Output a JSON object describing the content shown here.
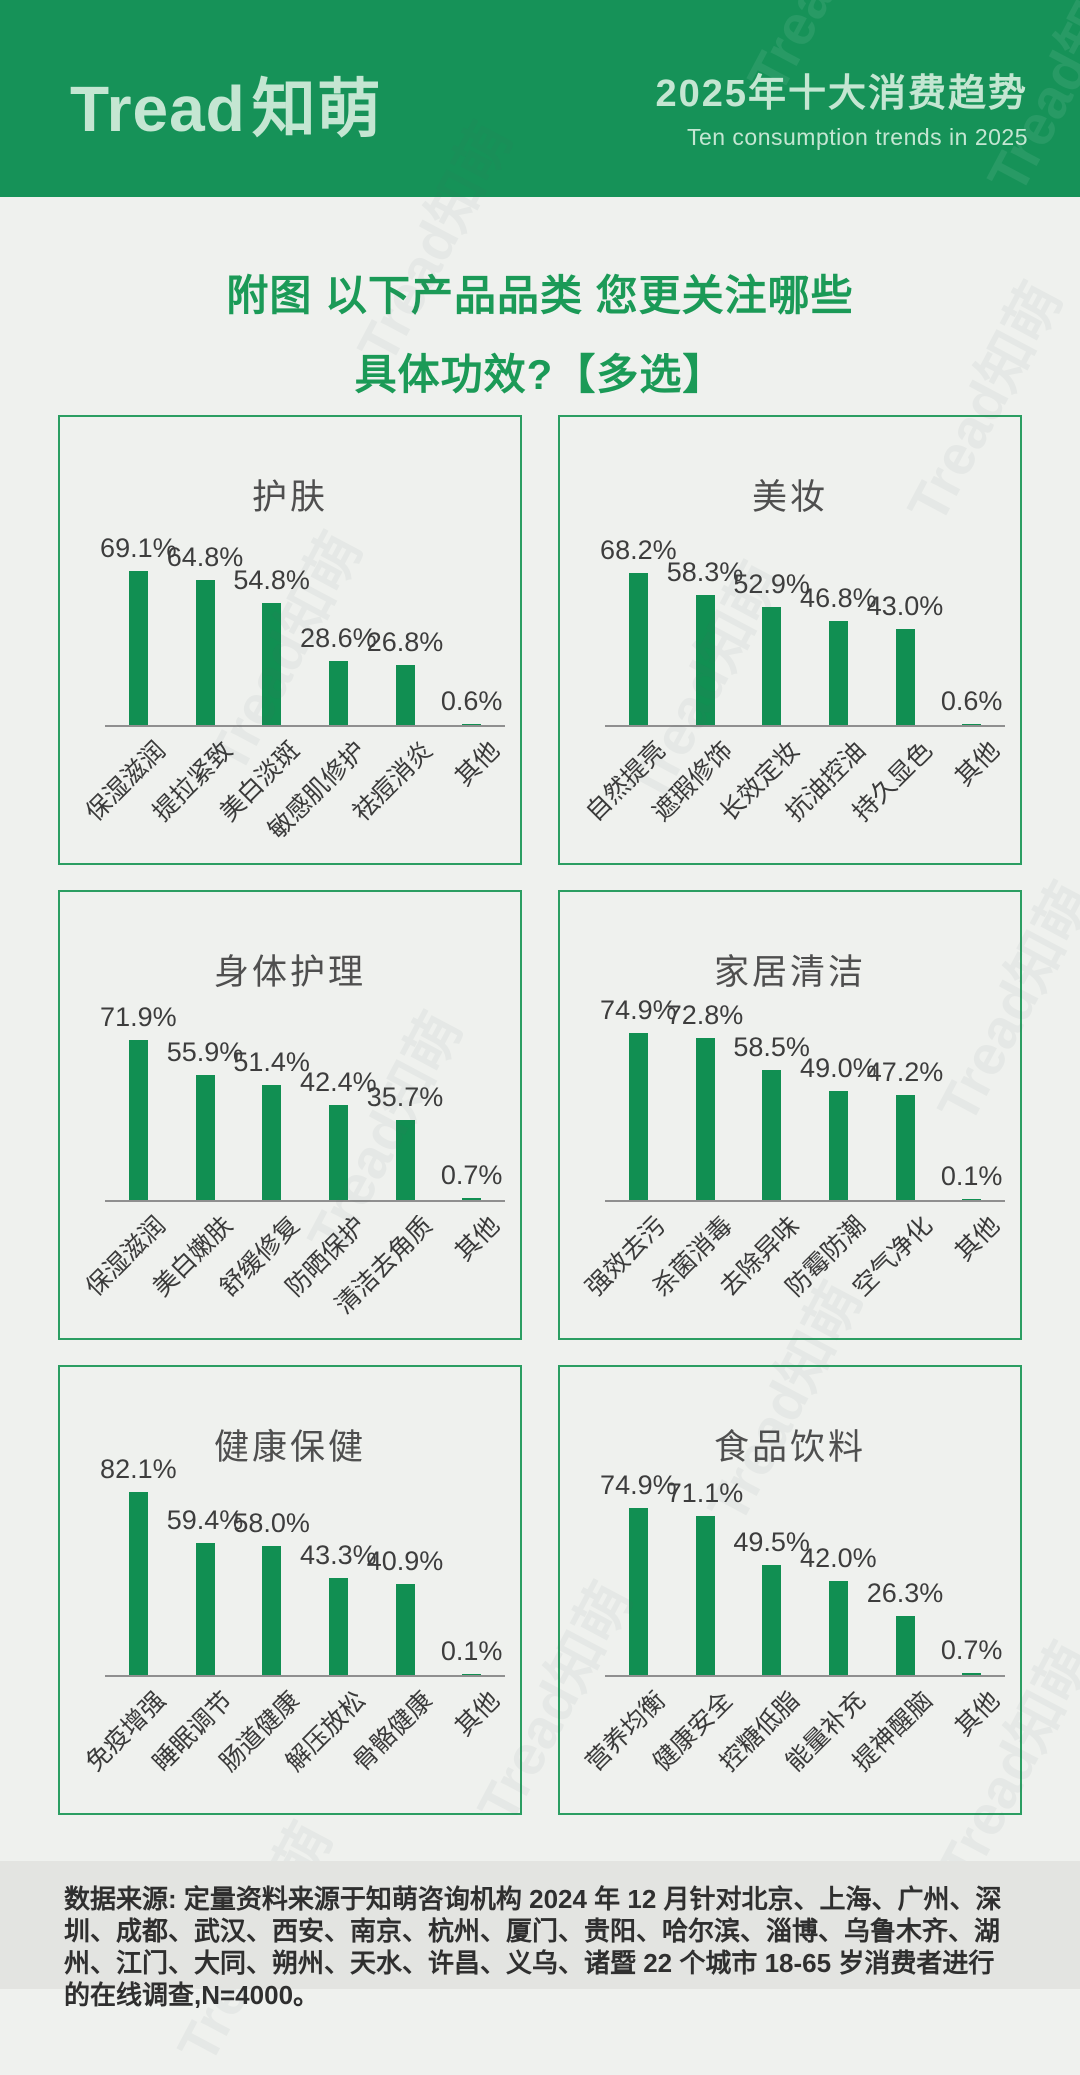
{
  "header": {
    "logo_en": "Tread",
    "logo_cn": "知萌",
    "title_cn": "2025年十大消费趋势",
    "title_en": "Ten consumption trends in 2025"
  },
  "main_title": {
    "line1": "附图 以下产品品类 您更关注哪些",
    "line2": "具体功效?【多选】"
  },
  "watermark_text": "Tread知萌",
  "colors": {
    "header_bg": "#169258",
    "header_text": "#c4e6d2",
    "title_green": "#1b9a57",
    "bar_green": "#118f52",
    "panel_border": "#2b9e62",
    "page_bg": "#eff1ee",
    "footer_bg": "#e3e4e1"
  },
  "chart_data": [
    {
      "type": "bar",
      "title": "护肤",
      "categories": [
        "保湿滋润",
        "提拉紧致",
        "美白淡斑",
        "敏感肌修护",
        "祛痘消炎",
        "其他"
      ],
      "values": [
        69.1,
        64.8,
        54.8,
        28.6,
        26.8,
        0.6
      ],
      "unit": "%",
      "ylim": [
        0,
        100
      ],
      "grid": false,
      "value_labels": true
    },
    {
      "type": "bar",
      "title": "美妆",
      "categories": [
        "自然提亮",
        "遮瑕修饰",
        "长效定妆",
        "抗油控油",
        "持久显色",
        "其他"
      ],
      "values": [
        68.2,
        58.3,
        52.9,
        46.8,
        43.0,
        0.6
      ],
      "unit": "%",
      "ylim": [
        0,
        100
      ],
      "grid": false,
      "value_labels": true
    },
    {
      "type": "bar",
      "title": "身体护理",
      "categories": [
        "保湿滋润",
        "美白嫩肤",
        "舒缓修复",
        "防晒保护",
        "清洁去角质",
        "其他"
      ],
      "values": [
        71.9,
        55.9,
        51.4,
        42.4,
        35.7,
        0.7
      ],
      "unit": "%",
      "ylim": [
        0,
        100
      ],
      "grid": false,
      "value_labels": true
    },
    {
      "type": "bar",
      "title": "家居清洁",
      "categories": [
        "强效去污",
        "杀菌消毒",
        "去除异味",
        "防霉防潮",
        "空气净化",
        "其他"
      ],
      "values": [
        74.9,
        72.8,
        58.5,
        49.0,
        47.2,
        0.1
      ],
      "unit": "%",
      "ylim": [
        0,
        100
      ],
      "grid": false,
      "value_labels": true
    },
    {
      "type": "bar",
      "title": "健康保健",
      "categories": [
        "免疫增强",
        "睡眠调节",
        "肠道健康",
        "解压放松",
        "骨骼健康",
        "其他"
      ],
      "values": [
        82.1,
        59.4,
        58.0,
        43.3,
        40.9,
        0.1
      ],
      "unit": "%",
      "ylim": [
        0,
        100
      ],
      "grid": false,
      "value_labels": true
    },
    {
      "type": "bar",
      "title": "食品饮料",
      "categories": [
        "营养均衡",
        "健康安全",
        "控糖低脂",
        "能量补充",
        "提神醒脑",
        "其他"
      ],
      "values": [
        74.9,
        71.1,
        49.5,
        42.0,
        26.3,
        0.7
      ],
      "unit": "%",
      "ylim": [
        0,
        100
      ],
      "grid": false,
      "value_labels": true
    }
  ],
  "footer": {
    "source_text": "数据来源: 定量资料来源于知萌咨询机构 2024 年 12 月针对北京、上海、广州、深圳、成都、武汉、西安、南京、杭州、厦门、贵阳、哈尔滨、淄博、乌鲁木齐、湖州、江门、大同、朔州、天水、许昌、义乌、诸暨 22 个城市 18-65 岁消费者进行的在线调查,N=4000。"
  }
}
